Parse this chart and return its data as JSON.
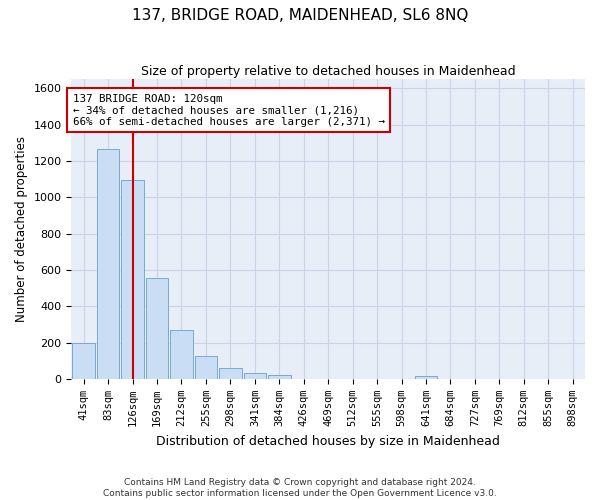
{
  "title": "137, BRIDGE ROAD, MAIDENHEAD, SL6 8NQ",
  "subtitle": "Size of property relative to detached houses in Maidenhead",
  "xlabel": "Distribution of detached houses by size in Maidenhead",
  "ylabel": "Number of detached properties",
  "footer_line1": "Contains HM Land Registry data © Crown copyright and database right 2024.",
  "footer_line2": "Contains public sector information licensed under the Open Government Licence v3.0.",
  "bar_labels": [
    "41sqm",
    "83sqm",
    "126sqm",
    "169sqm",
    "212sqm",
    "255sqm",
    "298sqm",
    "341sqm",
    "384sqm",
    "426sqm",
    "469sqm",
    "512sqm",
    "555sqm",
    "598sqm",
    "641sqm",
    "684sqm",
    "727sqm",
    "769sqm",
    "812sqm",
    "855sqm",
    "898sqm"
  ],
  "bar_values": [
    200,
    1265,
    1095,
    555,
    270,
    125,
    60,
    30,
    22,
    0,
    0,
    0,
    0,
    0,
    15,
    0,
    0,
    0,
    0,
    0,
    0
  ],
  "bar_color": "#c9ddf5",
  "bar_edge_color": "#7aaad0",
  "grid_color": "#c8d4e8",
  "background_color": "#e8eef8",
  "vline_x": 2.0,
  "vline_color": "#cc0000",
  "annotation_line1": "137 BRIDGE ROAD: 120sqm",
  "annotation_line2": "← 34% of detached houses are smaller (1,216)",
  "annotation_line3": "66% of semi-detached houses are larger (2,371) →",
  "annotation_box_color": "#cc0000",
  "ylim": [
    0,
    1650
  ],
  "yticks": [
    0,
    200,
    400,
    600,
    800,
    1000,
    1200,
    1400,
    1600
  ]
}
